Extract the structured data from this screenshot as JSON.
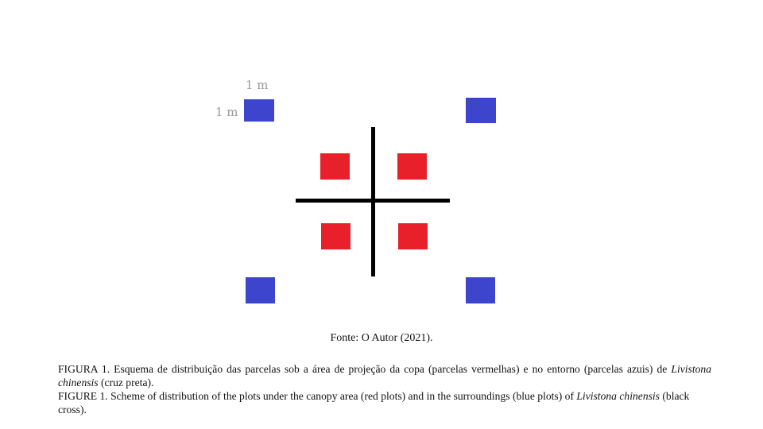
{
  "figure": {
    "scale_label_top": "1 m",
    "scale_label_left": "1 m",
    "colors": {
      "surrounding_plots": "#3d45cc",
      "canopy_plots": "#e8202a",
      "cross": "#000000"
    }
  },
  "source": "Fonte: O Autor (2021).",
  "caption_pt": {
    "prefix": "FIGURA 1. Esquema de distribuição das parcelas sob a área de projeção da copa (parcelas vermelhas) e no entorno (parcelas azuis) de ",
    "species": "Livistona chinensis",
    "suffix": " (cruz preta)."
  },
  "caption_en": {
    "prefix": "FIGURE 1. Scheme of distribution of the plots under the canopy area (red plots) and in the surroundings (blue plots) of ",
    "species": "Livistona chinensis",
    "suffix": " (black cross)."
  }
}
